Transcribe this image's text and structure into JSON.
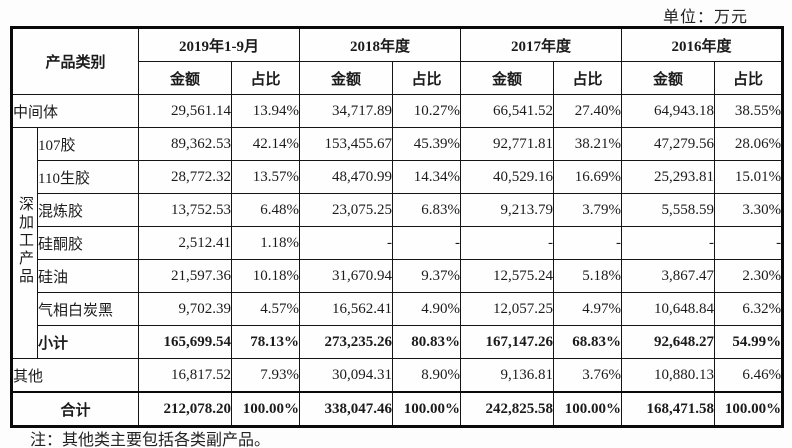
{
  "unit_label": "单位：万元",
  "note": "注：其他类主要包括各类副产品。",
  "table": {
    "corner_header": "产品类别",
    "periods": [
      "2019年1-9月",
      "2018年度",
      "2017年度",
      "2016年度"
    ],
    "amount_header": "金额",
    "ratio_header": "占比",
    "group_label": "深加工产品",
    "rows": [
      {
        "label": "中间体",
        "span_full": true,
        "in_group": false,
        "emphasis": false,
        "values": [
          "29,561.14",
          "13.94%",
          "34,717.89",
          "10.27%",
          "66,541.52",
          "27.40%",
          "64,943.18",
          "38.55%"
        ]
      },
      {
        "label": "107胶",
        "span_full": false,
        "in_group": true,
        "group_start": true,
        "emphasis": false,
        "values": [
          "89,362.53",
          "42.14%",
          "153,455.67",
          "45.39%",
          "92,771.81",
          "38.21%",
          "47,279.56",
          "28.06%"
        ]
      },
      {
        "label": "110生胶",
        "span_full": false,
        "in_group": true,
        "emphasis": false,
        "values": [
          "28,772.32",
          "13.57%",
          "48,470.99",
          "14.34%",
          "40,529.16",
          "16.69%",
          "25,293.81",
          "15.01%"
        ]
      },
      {
        "label": "混炼胶",
        "span_full": false,
        "in_group": true,
        "emphasis": false,
        "values": [
          "13,752.53",
          "6.48%",
          "23,075.25",
          "6.83%",
          "9,213.79",
          "3.79%",
          "5,558.59",
          "3.30%"
        ]
      },
      {
        "label": "硅酮胶",
        "span_full": false,
        "in_group": true,
        "emphasis": false,
        "values": [
          "2,512.41",
          "1.18%",
          "-",
          "-",
          "-",
          "-",
          "-",
          "-"
        ]
      },
      {
        "label": "硅油",
        "span_full": false,
        "in_group": true,
        "emphasis": false,
        "values": [
          "21,597.36",
          "10.18%",
          "31,670.94",
          "9.37%",
          "12,575.24",
          "5.18%",
          "3,867.47",
          "2.30%"
        ]
      },
      {
        "label": "气相白炭黑",
        "span_full": false,
        "in_group": true,
        "emphasis": false,
        "values": [
          "9,702.39",
          "4.57%",
          "16,562.41",
          "4.90%",
          "12,057.25",
          "4.97%",
          "10,648.84",
          "6.32%"
        ]
      },
      {
        "label": "小计",
        "span_full": false,
        "in_group": true,
        "emphasis": true,
        "values": [
          "165,699.54",
          "78.13%",
          "273,235.26",
          "80.83%",
          "167,147.26",
          "68.83%",
          "92,648.27",
          "54.99%"
        ]
      },
      {
        "label": "其他",
        "span_full": true,
        "in_group": false,
        "emphasis": false,
        "values": [
          "16,817.52",
          "7.93%",
          "30,094.31",
          "8.90%",
          "9,136.81",
          "3.76%",
          "10,880.13",
          "6.46%"
        ]
      },
      {
        "label": "合计",
        "span_full": true,
        "in_group": false,
        "emphasis": true,
        "is_total": true,
        "center_label": true,
        "values": [
          "212,078.20",
          "100.00%",
          "338,047.46",
          "100.00%",
          "242,825.58",
          "100.00%",
          "168,471.58",
          "100.00%"
        ]
      }
    ]
  }
}
